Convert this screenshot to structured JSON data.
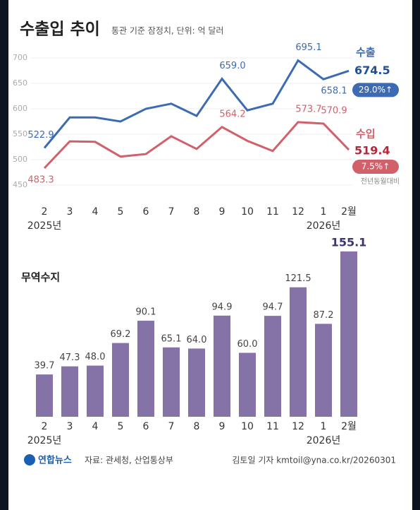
{
  "chart_data": [
    {
      "type": "line",
      "title": "수출입 추이",
      "subtitle": "통관 기준 잠정치, 단위: 억 달러",
      "categories": [
        "2",
        "3",
        "4",
        "5",
        "6",
        "7",
        "8",
        "9",
        "10",
        "11",
        "12",
        "1",
        "2월"
      ],
      "year_labels": [
        "2025년",
        "2026년"
      ],
      "ylim": [
        450,
        700
      ],
      "yticks": [
        450,
        500,
        550,
        600,
        650,
        700
      ],
      "grid": true,
      "annotation": "전년동월대비",
      "series": [
        {
          "name": "수출",
          "color": "#3d6bb3",
          "change_label": "29.0%↑",
          "values": [
            522.9,
            583,
            583,
            575,
            600,
            610,
            586,
            659.0,
            597,
            610,
            695.1,
            658.1,
            674.5
          ],
          "value_labels": [
            "522.9",
            null,
            null,
            null,
            null,
            null,
            null,
            "659.0",
            null,
            null,
            "695.1",
            "658.1",
            "674.5"
          ]
        },
        {
          "name": "수입",
          "color": "#d2606b",
          "change_label": "7.5%↑",
          "values": [
            483.3,
            536,
            535,
            506,
            511,
            546,
            521,
            564.2,
            537,
            517,
            573.7,
            570.9,
            519.4
          ],
          "value_labels": [
            "483.3",
            null,
            null,
            null,
            null,
            null,
            null,
            "564.2",
            null,
            null,
            "573.7",
            "570.9",
            "519.4"
          ]
        }
      ]
    },
    {
      "type": "bar",
      "title": "무역수지",
      "categories": [
        "2",
        "3",
        "4",
        "5",
        "6",
        "7",
        "8",
        "9",
        "10",
        "11",
        "12",
        "1",
        "2월"
      ],
      "year_labels": [
        "2025년",
        "2026년"
      ],
      "color": "#8573a8",
      "values": [
        39.7,
        47.3,
        48.0,
        69.2,
        90.1,
        65.1,
        64.0,
        94.9,
        60.0,
        94.7,
        121.5,
        87.2,
        155.1
      ],
      "value_labels": [
        "39.7",
        "47.3",
        "48.0",
        "69.2",
        "90.1",
        "65.1",
        "64.0",
        "94.9",
        "60.0",
        "94.7",
        "121.5",
        "87.2",
        "155.1"
      ]
    }
  ],
  "footer": {
    "logo": "연합뉴스",
    "source": "자료: 관세청, 산업통상부",
    "credit": "김토일 기자 kmtoil@yna.co.kr/20260301"
  }
}
